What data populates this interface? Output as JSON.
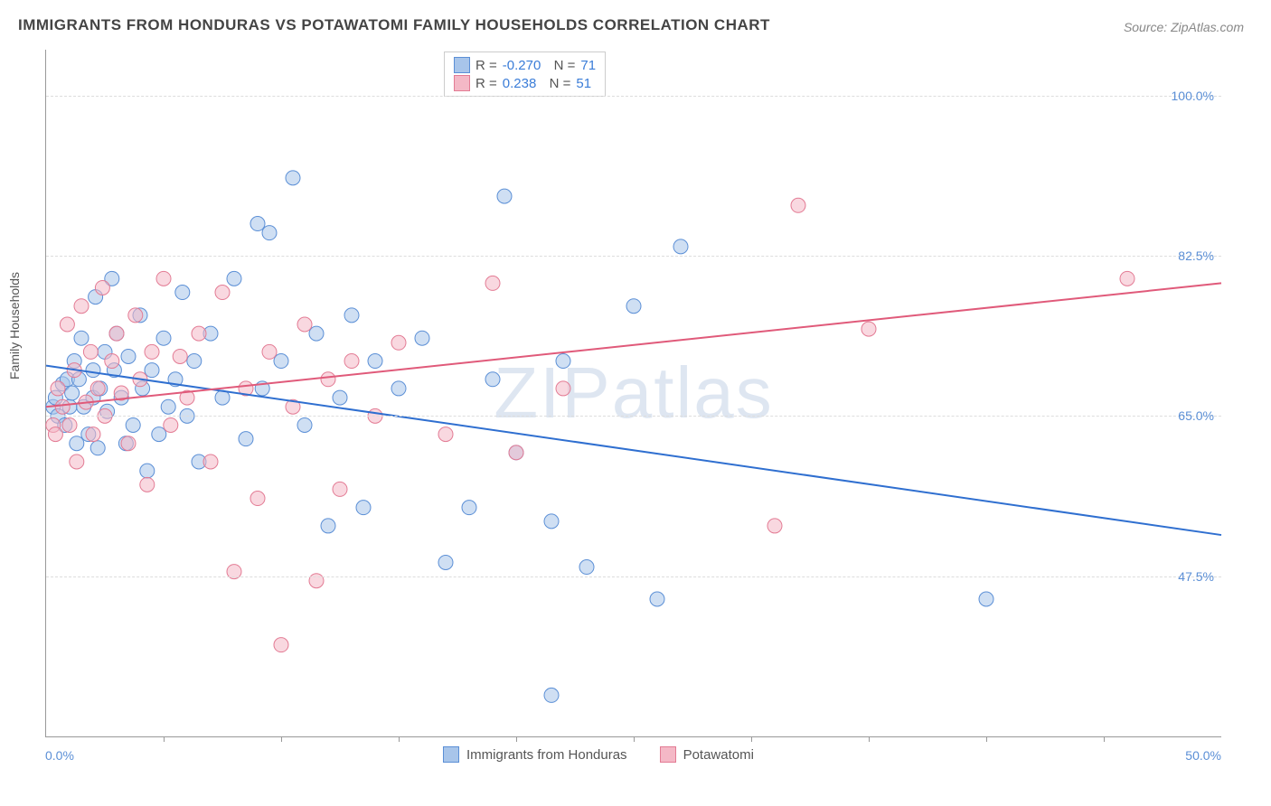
{
  "title": "IMMIGRANTS FROM HONDURAS VS POTAWATOMI FAMILY HOUSEHOLDS CORRELATION CHART",
  "source": "Source: ZipAtlas.com",
  "y_axis_label": "Family Households",
  "watermark": "ZIPatlas",
  "x_min_label": "0.0%",
  "x_max_label": "50.0%",
  "chart": {
    "type": "scatter",
    "xlim": [
      0,
      50
    ],
    "ylim": [
      30,
      105
    ],
    "y_ticks": [
      47.5,
      65.0,
      82.5,
      100.0
    ],
    "y_tick_labels": [
      "47.5%",
      "65.0%",
      "82.5%",
      "100.0%"
    ],
    "x_tick_positions": [
      5,
      10,
      15,
      20,
      25,
      30,
      35,
      40,
      45
    ],
    "background_color": "#ffffff",
    "grid_color": "#dddddd",
    "axis_color": "#999999",
    "marker_radius": 8,
    "marker_opacity": 0.55,
    "line_width": 2,
    "series": [
      {
        "name": "Immigrants from Honduras",
        "fill": "#a8c5ea",
        "stroke": "#5b8fd6",
        "line_color": "#2f6fd0",
        "r": "-0.270",
        "n": "71",
        "trend": {
          "x1": 0,
          "y1": 70.5,
          "x2": 50,
          "y2": 52.0
        },
        "points": [
          [
            0.3,
            66
          ],
          [
            0.4,
            67
          ],
          [
            0.5,
            65
          ],
          [
            0.7,
            68.5
          ],
          [
            0.8,
            64
          ],
          [
            0.9,
            69
          ],
          [
            1.0,
            66
          ],
          [
            1.1,
            67.5
          ],
          [
            1.2,
            71
          ],
          [
            1.3,
            62
          ],
          [
            1.4,
            69
          ],
          [
            1.5,
            73.5
          ],
          [
            1.6,
            66
          ],
          [
            1.8,
            63
          ],
          [
            2.0,
            70
          ],
          [
            2.0,
            67
          ],
          [
            2.1,
            78
          ],
          [
            2.2,
            61.5
          ],
          [
            2.3,
            68
          ],
          [
            2.5,
            72
          ],
          [
            2.6,
            65.5
          ],
          [
            2.8,
            80
          ],
          [
            2.9,
            70
          ],
          [
            3.0,
            74
          ],
          [
            3.2,
            67
          ],
          [
            3.4,
            62
          ],
          [
            3.5,
            71.5
          ],
          [
            3.7,
            64
          ],
          [
            4.0,
            76
          ],
          [
            4.1,
            68
          ],
          [
            4.3,
            59
          ],
          [
            4.5,
            70
          ],
          [
            4.8,
            63
          ],
          [
            5.0,
            73.5
          ],
          [
            5.2,
            66
          ],
          [
            5.5,
            69
          ],
          [
            5.8,
            78.5
          ],
          [
            6.0,
            65
          ],
          [
            6.3,
            71
          ],
          [
            6.5,
            60
          ],
          [
            7.0,
            74
          ],
          [
            7.5,
            67
          ],
          [
            8.0,
            80
          ],
          [
            8.5,
            62.5
          ],
          [
            9.0,
            86
          ],
          [
            9.2,
            68
          ],
          [
            9.5,
            85
          ],
          [
            10.0,
            71
          ],
          [
            10.5,
            91
          ],
          [
            11.0,
            64
          ],
          [
            11.5,
            74
          ],
          [
            12.0,
            53
          ],
          [
            12.5,
            67
          ],
          [
            13.0,
            76
          ],
          [
            13.5,
            55
          ],
          [
            14.0,
            71
          ],
          [
            15.0,
            68
          ],
          [
            16.0,
            73.5
          ],
          [
            17.0,
            49
          ],
          [
            18.0,
            55
          ],
          [
            19.0,
            69
          ],
          [
            19.5,
            89
          ],
          [
            20.0,
            61
          ],
          [
            21.5,
            34.5
          ],
          [
            22.0,
            71
          ],
          [
            23.0,
            48.5
          ],
          [
            25.0,
            77
          ],
          [
            26.0,
            45
          ],
          [
            27.0,
            83.5
          ],
          [
            40.0,
            45
          ],
          [
            21.5,
            53.5
          ]
        ]
      },
      {
        "name": "Potawatomi",
        "fill": "#f4b8c6",
        "stroke": "#e37b94",
        "line_color": "#e05a7a",
        "r": "0.238",
        "n": "51",
        "trend": {
          "x1": 0,
          "y1": 66.0,
          "x2": 50,
          "y2": 79.5
        },
        "points": [
          [
            0.3,
            64
          ],
          [
            0.4,
            63
          ],
          [
            0.5,
            68
          ],
          [
            0.7,
            66
          ],
          [
            0.9,
            75
          ],
          [
            1.0,
            64
          ],
          [
            1.2,
            70
          ],
          [
            1.3,
            60
          ],
          [
            1.5,
            77
          ],
          [
            1.7,
            66.5
          ],
          [
            1.9,
            72
          ],
          [
            2.0,
            63
          ],
          [
            2.2,
            68
          ],
          [
            2.4,
            79
          ],
          [
            2.5,
            65
          ],
          [
            2.8,
            71
          ],
          [
            3.0,
            74
          ],
          [
            3.2,
            67.5
          ],
          [
            3.5,
            62
          ],
          [
            3.8,
            76
          ],
          [
            4.0,
            69
          ],
          [
            4.3,
            57.5
          ],
          [
            4.5,
            72
          ],
          [
            5.0,
            80
          ],
          [
            5.3,
            64
          ],
          [
            5.7,
            71.5
          ],
          [
            6.0,
            67
          ],
          [
            6.5,
            74
          ],
          [
            7.0,
            60
          ],
          [
            7.5,
            78.5
          ],
          [
            8.0,
            48
          ],
          [
            8.5,
            68
          ],
          [
            9.0,
            56
          ],
          [
            9.5,
            72
          ],
          [
            10.0,
            40
          ],
          [
            10.5,
            66
          ],
          [
            11.0,
            75
          ],
          [
            11.5,
            47
          ],
          [
            12.0,
            69
          ],
          [
            12.5,
            57
          ],
          [
            13.0,
            71
          ],
          [
            14.0,
            65
          ],
          [
            15.0,
            73
          ],
          [
            17.0,
            63
          ],
          [
            19.0,
            79.5
          ],
          [
            20.0,
            61
          ],
          [
            22.0,
            68
          ],
          [
            31.0,
            53
          ],
          [
            32.0,
            88
          ],
          [
            35.0,
            74.5
          ],
          [
            46.0,
            80
          ]
        ]
      }
    ]
  },
  "legend_bottom": [
    {
      "label": "Immigrants from Honduras",
      "fill": "#a8c5ea",
      "stroke": "#5b8fd6"
    },
    {
      "label": "Potawatomi",
      "fill": "#f4b8c6",
      "stroke": "#e37b94"
    }
  ]
}
